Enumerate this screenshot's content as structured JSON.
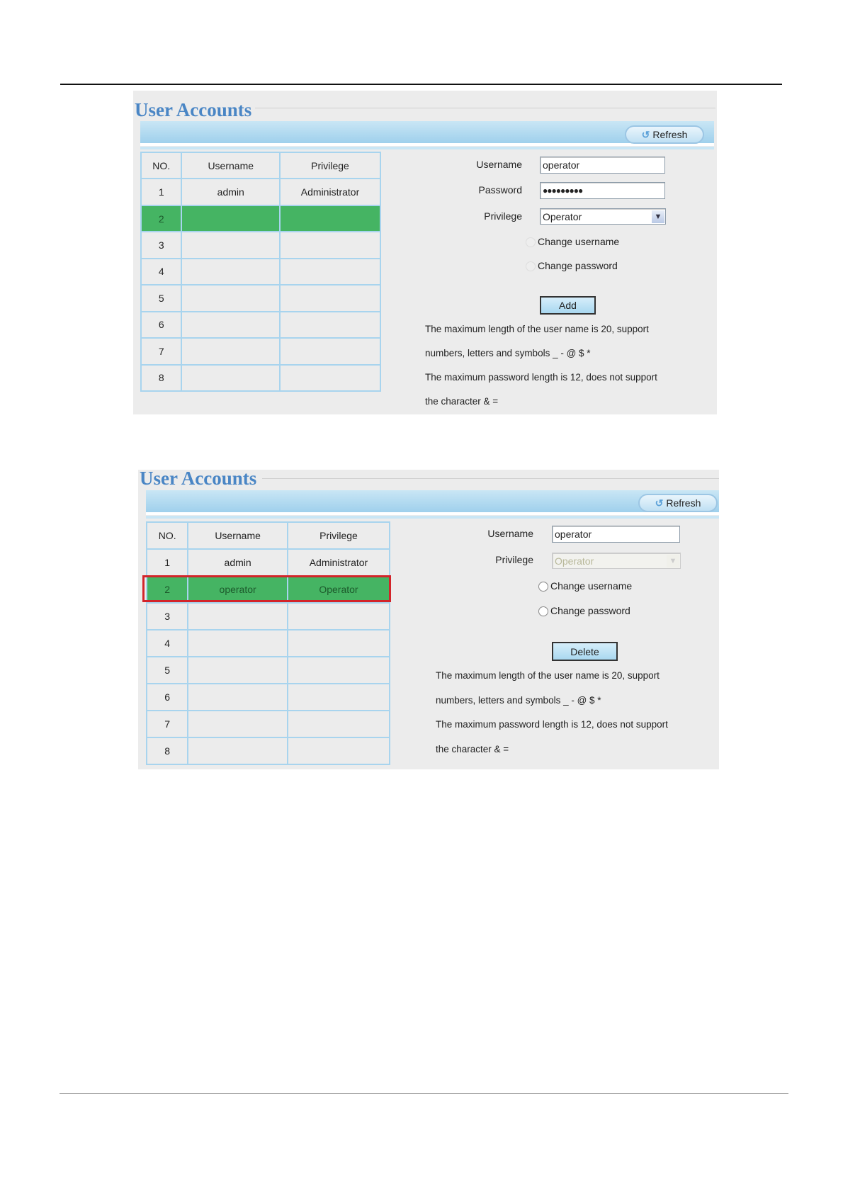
{
  "colors": {
    "accent_title": "#4a86c5",
    "selected_row": "#45b463",
    "highlight_border": "#d3242a",
    "header_bar": "#a9d6ee"
  },
  "panel1": {
    "title": "User Accounts",
    "refresh_label": "Refresh",
    "refresh_icon": "refresh-arrow-icon",
    "table": {
      "headers": [
        "NO.",
        "Username",
        "Privilege"
      ],
      "rows": [
        {
          "no": "1",
          "username": "admin",
          "privilege": "Administrator"
        },
        {
          "no": "2",
          "username": "",
          "privilege": ""
        },
        {
          "no": "3",
          "username": "",
          "privilege": ""
        },
        {
          "no": "4",
          "username": "",
          "privilege": ""
        },
        {
          "no": "5",
          "username": "",
          "privilege": ""
        },
        {
          "no": "6",
          "username": "",
          "privilege": ""
        },
        {
          "no": "7",
          "username": "",
          "privilege": ""
        },
        {
          "no": "8",
          "username": "",
          "privilege": ""
        }
      ],
      "selected_row": "2"
    },
    "form": {
      "username_label": "Username",
      "username_value": "operator",
      "password_label": "Password",
      "password_value": "●●●●●●●●●",
      "privilege_label": "Privilege",
      "privilege_value": "Operator",
      "change_username": "Change username",
      "change_password": "Change password",
      "add_label": "Add"
    },
    "notes": [
      "The maximum length of the user name is 20, support",
      "numbers, letters and symbols _ - @ $ *",
      "The maximum password length is 12, does not support",
      "the character & ="
    ]
  },
  "panel2": {
    "title": "User Accounts",
    "refresh_label": "Refresh",
    "refresh_icon": "refresh-arrow-icon",
    "table": {
      "headers": [
        "NO.",
        "Username",
        "Privilege"
      ],
      "rows": [
        {
          "no": "1",
          "username": "admin",
          "privilege": "Administrator"
        },
        {
          "no": "2",
          "username": "operator",
          "privilege": "Operator"
        },
        {
          "no": "3",
          "username": "",
          "privilege": ""
        },
        {
          "no": "4",
          "username": "",
          "privilege": ""
        },
        {
          "no": "5",
          "username": "",
          "privilege": ""
        },
        {
          "no": "6",
          "username": "",
          "privilege": ""
        },
        {
          "no": "7",
          "username": "",
          "privilege": ""
        },
        {
          "no": "8",
          "username": "",
          "privilege": ""
        }
      ],
      "selected_row": "2"
    },
    "form": {
      "username_label": "Username",
      "username_value": "operator",
      "privilege_label": "Privilege",
      "privilege_value": "Operator",
      "change_username": "Change username",
      "change_password": "Change password",
      "delete_label": "Delete"
    },
    "notes": [
      "The maximum length of the user name is 20, support",
      "numbers, letters and symbols _ - @ $ *",
      "The maximum password length is 12, does not support",
      "the character & ="
    ]
  }
}
